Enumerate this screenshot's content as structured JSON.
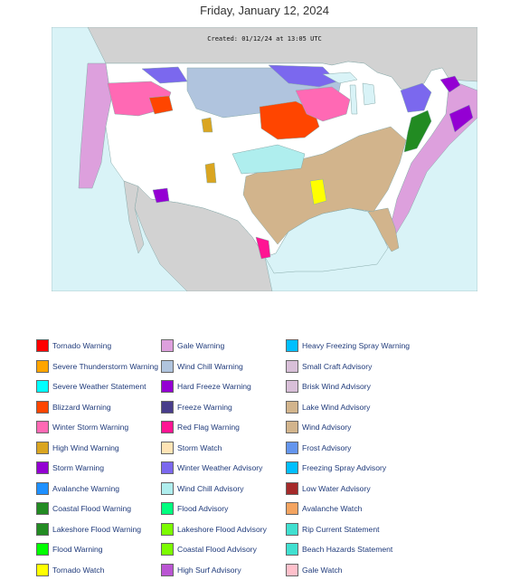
{
  "page": {
    "title": "Friday, January 12, 2024"
  },
  "map": {
    "created_text": "Created: 01/12/24 at 13:05 UTC",
    "colors": {
      "ocean": "#d9f3f7",
      "land": "#ffffff",
      "canada": "#d2d2d2",
      "mexico": "#d2d2d2",
      "wind_advisory": "#d2b48c",
      "winter_storm_warning": "#ff69b4",
      "blizzard_warning": "#ff4500",
      "winter_weather_advisory": "#7b68ee",
      "wind_chill_warning": "#b0c4de",
      "gale_warning": "#dda0dd",
      "storm_warning": "#9400d3",
      "lake_wind_advisory": "#d2b48c",
      "red_flag_warning": "#ff1493",
      "tornado_watch": "#ffff00",
      "high_wind_warning": "#daa520",
      "coastal_flood": "#228b22",
      "wind_chill_advisory": "#afeeee",
      "flood_warning": "#00ff00"
    }
  },
  "legend": {
    "columns": [
      [
        {
          "label": "Tornado Warning",
          "color": "#ff0000"
        },
        {
          "label": "Severe Thunderstorm Warning",
          "color": "#ffa500"
        },
        {
          "label": "Severe Weather Statement",
          "color": "#00ffff"
        },
        {
          "label": "Blizzard Warning",
          "color": "#ff4500"
        },
        {
          "label": "Winter Storm Warning",
          "color": "#ff69b4"
        },
        {
          "label": "High Wind Warning",
          "color": "#daa520"
        },
        {
          "label": "Storm Warning",
          "color": "#9400d3"
        },
        {
          "label": "Avalanche Warning",
          "color": "#1e90ff"
        },
        {
          "label": "Coastal Flood Warning",
          "color": "#228b22"
        },
        {
          "label": "Lakeshore Flood Warning",
          "color": "#228b22"
        },
        {
          "label": "Flood Warning",
          "color": "#00ff00"
        },
        {
          "label": "Tornado Watch",
          "color": "#ffff00"
        }
      ],
      [
        {
          "label": "Gale Warning",
          "color": "#dda0dd"
        },
        {
          "label": "Wind Chill Warning",
          "color": "#b0c4de"
        },
        {
          "label": "Hard Freeze Warning",
          "color": "#9400d3"
        },
        {
          "label": "Freeze Warning",
          "color": "#483d8b"
        },
        {
          "label": "Red Flag Warning",
          "color": "#ff1493"
        },
        {
          "label": "Storm Watch",
          "color": "#ffe4b5"
        },
        {
          "label": "Winter Weather Advisory",
          "color": "#7b68ee"
        },
        {
          "label": "Wind Chill Advisory",
          "color": "#afeeee"
        },
        {
          "label": "Flood Advisory",
          "color": "#00ff7f"
        },
        {
          "label": "Lakeshore Flood Advisory",
          "color": "#7cfc00"
        },
        {
          "label": "Coastal Flood Advisory",
          "color": "#7cfc00"
        },
        {
          "label": "High Surf Advisory",
          "color": "#ba55d3"
        }
      ],
      [
        {
          "label": "Heavy Freezing Spray Warning",
          "color": "#00bfff"
        },
        {
          "label": "Small Craft Advisory",
          "color": "#d8bfd8"
        },
        {
          "label": "Brisk Wind Advisory",
          "color": "#d8bfd8"
        },
        {
          "label": "Lake Wind Advisory",
          "color": "#d2b48c"
        },
        {
          "label": "Wind Advisory",
          "color": "#d2b48c"
        },
        {
          "label": "Frost Advisory",
          "color": "#6495ed"
        },
        {
          "label": "Freezing Spray Advisory",
          "color": "#00bfff"
        },
        {
          "label": "Low Water Advisory",
          "color": "#a52a2a"
        },
        {
          "label": "Avalanche Watch",
          "color": "#f4a460"
        },
        {
          "label": "Rip Current Statement",
          "color": "#40e0d0"
        },
        {
          "label": "Beach Hazards Statement",
          "color": "#40e0d0"
        },
        {
          "label": "Gale Watch",
          "color": "#ffc0cb"
        }
      ]
    ]
  }
}
